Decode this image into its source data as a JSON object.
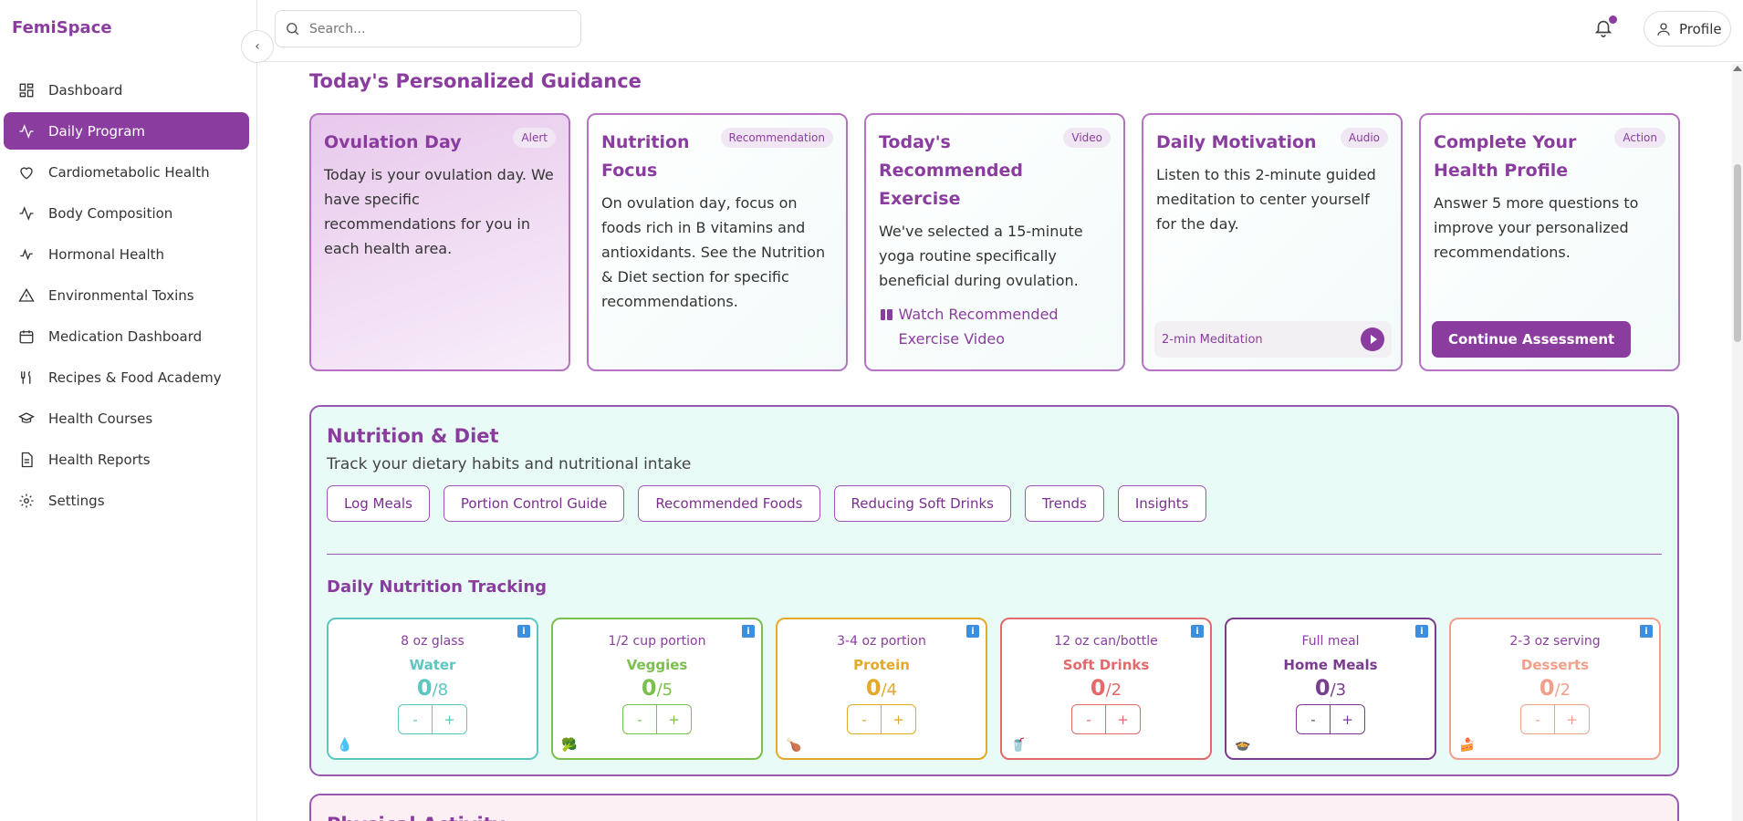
{
  "brand": "FemiSpace",
  "header": {
    "search_placeholder": "Search...",
    "profile_label": "Profile"
  },
  "sidebar": {
    "items": [
      {
        "label": "Dashboard",
        "icon": "grid-icon"
      },
      {
        "label": "Daily Program",
        "icon": "activity-icon",
        "active": true
      },
      {
        "label": "Cardiometabolic Health",
        "icon": "heart-icon"
      },
      {
        "label": "Body Composition",
        "icon": "activity-icon"
      },
      {
        "label": "Hormonal Health",
        "icon": "pulse-icon"
      },
      {
        "label": "Environmental Toxins",
        "icon": "warning-icon"
      },
      {
        "label": "Medication Dashboard",
        "icon": "calendar-icon"
      },
      {
        "label": "Recipes & Food Academy",
        "icon": "utensils-icon"
      },
      {
        "label": "Health Courses",
        "icon": "graduation-cap-icon"
      },
      {
        "label": "Health Reports",
        "icon": "file-icon"
      },
      {
        "label": "Settings",
        "icon": "gear-icon"
      }
    ]
  },
  "guidance": {
    "title": "Today's Personalized Guidance",
    "cards": [
      {
        "title": "Ovulation Day",
        "tag": "Alert",
        "text": "Today is your ovulation day. We have specific recommendations for you in each health area."
      },
      {
        "title": "Nutrition Focus",
        "tag": "Recommendation",
        "text": "On ovulation day, focus on foods rich in B vitamins and antioxidants. See the Nutrition & Diet section for specific recommendations."
      },
      {
        "title": "Today's Recommended Exercise",
        "tag": "Video",
        "text": "We've selected a 15-minute yoga routine specifically beneficial during ovulation.",
        "link": "Watch Recommended Exercise Video"
      },
      {
        "title": "Daily Motivation",
        "tag": "Audio",
        "text": "Listen to this 2-minute guided meditation to center yourself for the day.",
        "audio": "2-min Meditation"
      },
      {
        "title": "Complete Your Health Profile",
        "tag": "Action",
        "text": "Answer 5 more questions to improve your personalized recommendations.",
        "button": "Continue Assessment"
      }
    ]
  },
  "nutrition": {
    "title": "Nutrition & Diet",
    "subtitle": "Track your dietary habits and nutritional intake",
    "tabs": [
      "Log Meals",
      "Portion Control Guide",
      "Recommended Foods",
      "Reducing Soft Drinks",
      "Trends",
      "Insights"
    ],
    "tracking_title": "Daily Nutrition Tracking",
    "trackers": [
      {
        "portion": "8 oz glass",
        "name": "Water",
        "count": "0",
        "goal": "/8",
        "color": "#5cc6c0",
        "emoji": "💧"
      },
      {
        "portion": "1/2 cup portion",
        "name": "Veggies",
        "count": "0",
        "goal": "/5",
        "color": "#7bbf4e",
        "emoji": "🥦"
      },
      {
        "portion": "3-4 oz portion",
        "name": "Protein",
        "count": "0",
        "goal": "/4",
        "color": "#e2a92a",
        "emoji": "🍗"
      },
      {
        "portion": "12 oz can/bottle",
        "name": "Soft Drinks",
        "count": "0",
        "goal": "/2",
        "color": "#e26a6a",
        "emoji": "🥤"
      },
      {
        "portion": "Full meal",
        "name": "Home Meals",
        "count": "0",
        "goal": "/3",
        "color": "#7a3d8e",
        "emoji": "🍲"
      },
      {
        "portion": "2-3 oz serving",
        "name": "Desserts",
        "count": "0",
        "goal": "/2",
        "color": "#f0a08a",
        "emoji": "🍰"
      }
    ],
    "minus": "-",
    "plus": "+",
    "info": "i"
  },
  "physical": {
    "title": "Physical Activity"
  }
}
